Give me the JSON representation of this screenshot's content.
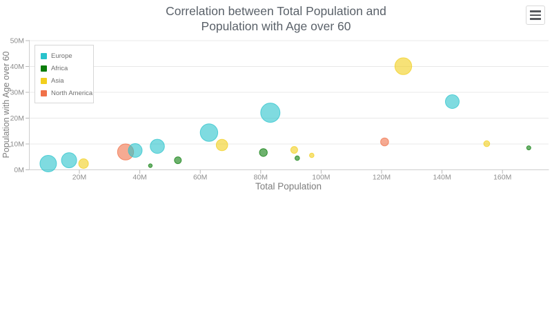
{
  "header": {
    "title_line1": "Correlation between Total Population and",
    "title_line2": "Population with Age over 60",
    "menu_button": {
      "icon": "hamburger-icon"
    }
  },
  "legend": {
    "items": [
      {
        "label": "Europe",
        "color": "#29C3CC"
      },
      {
        "label": "Africa",
        "color": "#0B7D0B"
      },
      {
        "label": "Asia",
        "color": "#F2CF1D"
      },
      {
        "label": "North America",
        "color": "#F07149"
      }
    ]
  },
  "chart_data": {
    "type": "scatter",
    "variant": "bubble",
    "title": "Correlation between Total Population and Population with Age over 60",
    "xlabel": "Total Population",
    "ylabel": "Population with Age over 60",
    "xlim_millions": [
      3,
      175
    ],
    "ylim_millions": [
      0,
      50
    ],
    "x_tick_values": [
      20,
      40,
      60,
      80,
      100,
      120,
      140,
      160
    ],
    "x_tick_labels": [
      "20M",
      "40M",
      "60M",
      "80M",
      "100M",
      "120M",
      "140M",
      "160M"
    ],
    "y_tick_values": [
      0,
      10,
      20,
      30,
      40,
      50
    ],
    "y_tick_labels": [
      "0M",
      "10M",
      "20M",
      "30M",
      "40M",
      "50M"
    ],
    "grid": "horizontal-only",
    "legend_position": "top-left-inside",
    "point_format": "[total_population_millions, population_over_60_millions, bubble_radius_px]",
    "series": [
      {
        "name": "Europe",
        "color": "#29C3CC",
        "points": [
          [
            9.7,
            2.4,
            12
          ],
          [
            16.6,
            3.7,
            11
          ],
          [
            38.5,
            7.5,
            10
          ],
          [
            45.8,
            9.1,
            10.3
          ],
          [
            62.9,
            14.4,
            12.7
          ],
          [
            83.2,
            22.1,
            14
          ],
          [
            143.4,
            26.4,
            10
          ]
        ]
      },
      {
        "name": "Africa",
        "color": "#0B7D0B",
        "points": [
          [
            43.5,
            1.6,
            2.7
          ],
          [
            52.6,
            3.7,
            5
          ],
          [
            80.9,
            6.7,
            5.7
          ],
          [
            92.1,
            4.5,
            3.3
          ],
          [
            168.7,
            8.5,
            3
          ]
        ]
      },
      {
        "name": "Asia",
        "color": "#F2CF1D",
        "points": [
          [
            21.4,
            2.4,
            7
          ],
          [
            67.2,
            9.6,
            8.3
          ],
          [
            91.1,
            7.7,
            5
          ],
          [
            96.9,
            5.6,
            3.3
          ],
          [
            127.2,
            40.1,
            12.2
          ],
          [
            154.8,
            10.1,
            4.3
          ]
        ]
      },
      {
        "name": "North America",
        "color": "#F07149",
        "points": [
          [
            35.3,
            6.9,
            11.7
          ],
          [
            121.0,
            10.8,
            5.8
          ]
        ]
      }
    ]
  },
  "colors": {
    "title": "#5a6169",
    "axis_line": "#cdcdcd",
    "grid_line": "#e8e8e8",
    "tick_mark": "#b8b8b8",
    "tick_label": "#8e8e8e",
    "axis_title": "#7d7d7d",
    "legend_text": "#6f6f6f",
    "legend_border": "#d6d6d6",
    "menu_bars": "#54575c",
    "background": "#ffffff"
  }
}
